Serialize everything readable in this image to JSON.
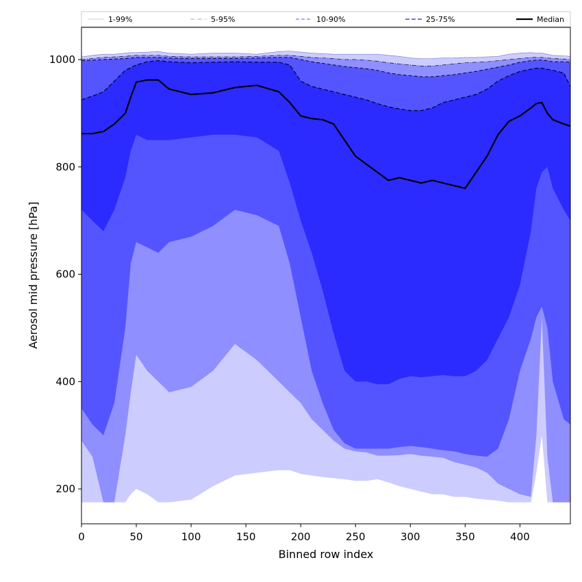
{
  "chart_data": {
    "type": "area",
    "title": "",
    "xlabel": "Binned row index",
    "ylabel": "Aerosol mid pressure [hPa]",
    "xlim": [
      0,
      446
    ],
    "ylim": [
      135,
      1060
    ],
    "x_ticks": [
      0,
      50,
      100,
      150,
      200,
      250,
      300,
      350,
      400
    ],
    "y_ticks": [
      200,
      400,
      600,
      800,
      1000
    ],
    "grid": false,
    "legend_position": "top, single row above the plot",
    "colors": {
      "band_1_99": "#ccccff",
      "band_5_95": "#8f8fff",
      "band_10_90": "#5555ff",
      "band_25_75": "#2b2bff",
      "median": "#000000"
    },
    "x": [
      0,
      10,
      20,
      30,
      40,
      45,
      50,
      60,
      70,
      80,
      100,
      120,
      140,
      160,
      180,
      190,
      200,
      210,
      220,
      230,
      240,
      250,
      260,
      270,
      280,
      290,
      300,
      310,
      320,
      330,
      340,
      350,
      360,
      370,
      380,
      390,
      400,
      410,
      415,
      420,
      425,
      430,
      440,
      446
    ],
    "series": [
      {
        "name": "1-99%",
        "lower": [
          175,
          175,
          175,
          175,
          175,
          190,
          200,
          190,
          175,
          175,
          180,
          205,
          225,
          230,
          235,
          235,
          228,
          225,
          222,
          220,
          218,
          215,
          215,
          218,
          212,
          205,
          200,
          195,
          190,
          190,
          185,
          185,
          182,
          180,
          178,
          175,
          175,
          175,
          230,
          300,
          175,
          175,
          175,
          175
        ],
        "upper": [
          1005,
          1008,
          1010,
          1010,
          1012,
          1013,
          1013,
          1014,
          1015,
          1012,
          1010,
          1012,
          1012,
          1010,
          1015,
          1016,
          1014,
          1012,
          1011,
          1010,
          1010,
          1010,
          1010,
          1010,
          1008,
          1006,
          1003,
          1002,
          1002,
          1003,
          1003,
          1004,
          1004,
          1005,
          1006,
          1010,
          1012,
          1013,
          1012,
          1012,
          1010,
          1008,
          1007,
          1006
        ]
      },
      {
        "name": "5-95%",
        "lower": [
          290,
          260,
          175,
          175,
          300,
          380,
          450,
          420,
          400,
          380,
          390,
          420,
          470,
          440,
          400,
          380,
          360,
          330,
          310,
          290,
          275,
          270,
          268,
          262,
          262,
          263,
          265,
          262,
          260,
          258,
          250,
          245,
          240,
          230,
          210,
          200,
          190,
          185,
          300,
          520,
          260,
          175,
          175,
          175
        ],
        "upper": [
          1000,
          1002,
          1004,
          1005,
          1006,
          1007,
          1008,
          1008,
          1008,
          1006,
          1005,
          1005,
          1005,
          1006,
          1008,
          1008,
          1006,
          1004,
          1003,
          1002,
          1000,
          1000,
          999,
          997,
          994,
          992,
          990,
          988,
          988,
          990,
          992,
          994,
          995,
          996,
          998,
          1000,
          1002,
          1004,
          1004,
          1004,
          1003,
          1002,
          1001,
          1000
        ]
      },
      {
        "name": "10-90%",
        "lower": [
          350,
          320,
          300,
          360,
          500,
          620,
          660,
          650,
          640,
          660,
          670,
          690,
          720,
          710,
          690,
          620,
          520,
          420,
          360,
          310,
          285,
          275,
          275,
          275,
          275,
          278,
          280,
          278,
          275,
          272,
          270,
          265,
          262,
          260,
          275,
          330,
          420,
          480,
          520,
          540,
          500,
          400,
          330,
          320
        ],
        "upper": [
          998,
          999,
          1000,
          1001,
          1002,
          1003,
          1004,
          1004,
          1004,
          1003,
          1002,
          1002,
          1002,
          1003,
          1004,
          1004,
          1000,
          996,
          993,
          990,
          987,
          985,
          983,
          980,
          975,
          972,
          970,
          968,
          968,
          970,
          972,
          975,
          978,
          982,
          986,
          990,
          995,
          998,
          999,
          999,
          998,
          996,
          996,
          995
        ]
      },
      {
        "name": "25-75%",
        "lower": [
          720,
          700,
          680,
          720,
          780,
          830,
          860,
          850,
          850,
          850,
          855,
          860,
          860,
          855,
          830,
          770,
          700,
          640,
          570,
          490,
          420,
          400,
          400,
          395,
          395,
          405,
          410,
          408,
          410,
          412,
          410,
          410,
          420,
          440,
          480,
          520,
          580,
          680,
          760,
          790,
          800,
          760,
          720,
          700
        ],
        "upper": [
          925,
          932,
          940,
          960,
          980,
          985,
          990,
          996,
          998,
          996,
          994,
          995,
          996,
          995,
          995,
          990,
          960,
          950,
          945,
          940,
          935,
          930,
          925,
          918,
          912,
          908,
          905,
          905,
          910,
          920,
          925,
          930,
          935,
          945,
          960,
          970,
          978,
          982,
          984,
          984,
          982,
          980,
          975,
          950
        ]
      },
      {
        "name": "Median",
        "values": [
          862,
          862,
          866,
          880,
          900,
          930,
          958,
          962,
          962,
          945,
          935,
          938,
          948,
          952,
          940,
          920,
          895,
          890,
          888,
          880,
          850,
          820,
          805,
          790,
          775,
          780,
          775,
          770,
          775,
          770,
          765,
          760,
          790,
          820,
          860,
          885,
          895,
          910,
          918,
          920,
          900,
          888,
          880,
          876
        ]
      }
    ],
    "legend": [
      {
        "label": "1-99%",
        "style": "solid-thin"
      },
      {
        "label": "5-95%",
        "style": "dashdot"
      },
      {
        "label": "10-90%",
        "style": "dashed"
      },
      {
        "label": "25-75%",
        "style": "dashed-bold"
      },
      {
        "label": "Median",
        "style": "solid-bold"
      }
    ]
  }
}
